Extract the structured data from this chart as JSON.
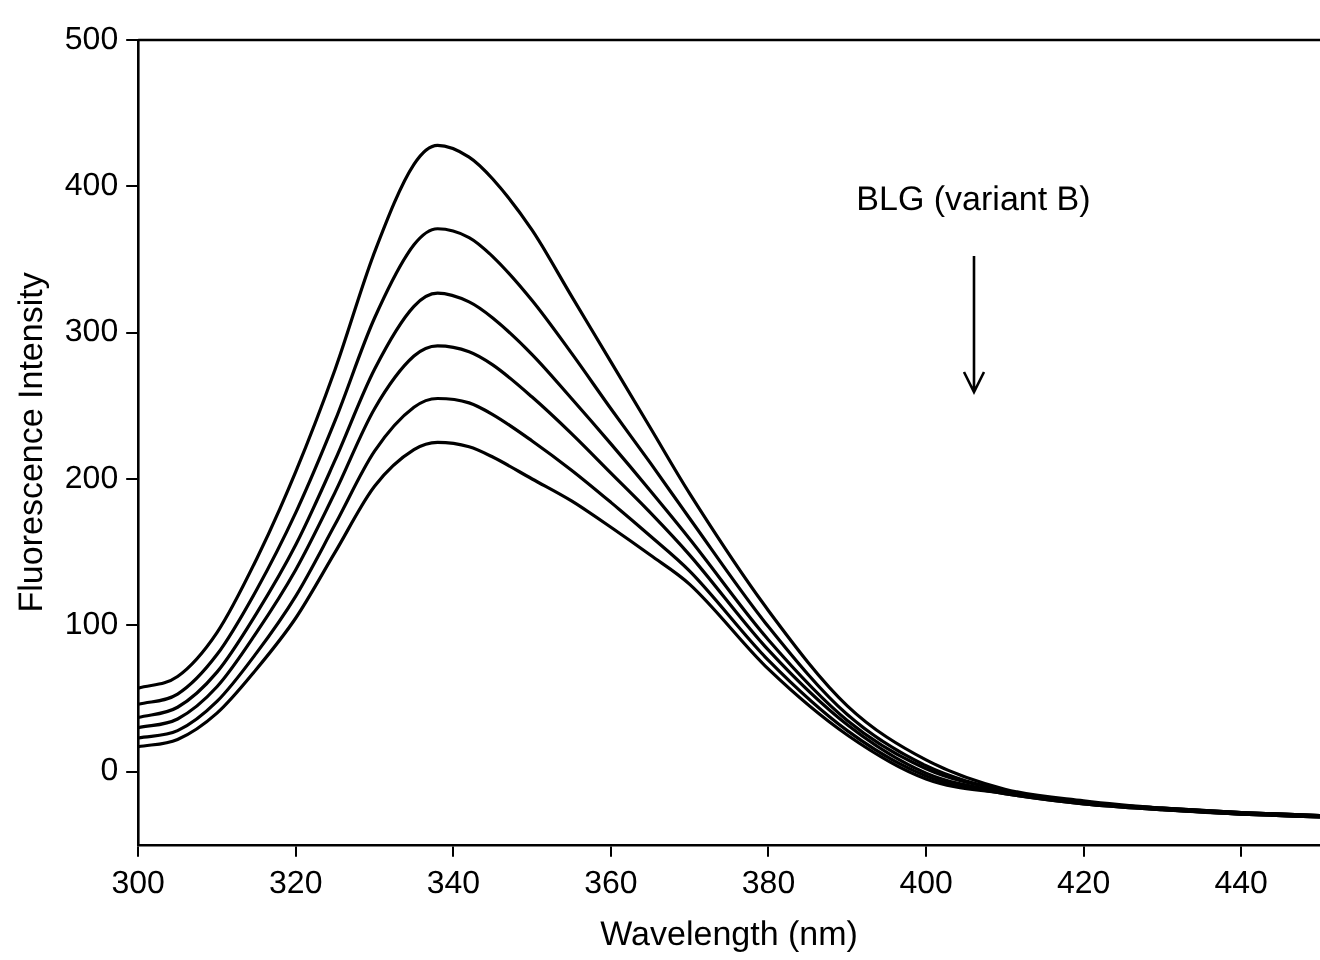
{
  "chart_data": {
    "type": "line",
    "xlabel": "Wavelength (nm)",
    "ylabel": "Fluorescence Intensity",
    "annotations": [
      "BLG (variant B)"
    ],
    "x": [
      300,
      305,
      310,
      315,
      320,
      325,
      330,
      335,
      338,
      342,
      345,
      350,
      355,
      360,
      365,
      370,
      380,
      390,
      400,
      410,
      420,
      430,
      440,
      450
    ],
    "series": [
      {
        "color": "#000000",
        "values": [
          57,
          65,
          95,
          145,
          205,
          275,
          355,
          415,
          428,
          420,
          405,
          370,
          325,
          280,
          235,
          190,
          110,
          45,
          8,
          -12,
          -20,
          -25,
          -28,
          -30
        ]
      },
      {
        "color": "#000000",
        "values": [
          46,
          53,
          80,
          124,
          177,
          240,
          310,
          360,
          371,
          365,
          352,
          322,
          286,
          248,
          211,
          173,
          99,
          39,
          4,
          -13,
          -21,
          -25,
          -28,
          -30
        ]
      },
      {
        "color": "#000000",
        "values": [
          37,
          44,
          68,
          108,
          155,
          213,
          275,
          318,
          327,
          321,
          310,
          285,
          255,
          224,
          192,
          159,
          90,
          35,
          2,
          -13,
          -21,
          -25,
          -28,
          -30
        ]
      },
      {
        "color": "#000000",
        "values": [
          30,
          36,
          58,
          95,
          138,
          191,
          248,
          284,
          291,
          287,
          278,
          256,
          231,
          204,
          177,
          148,
          83,
          32,
          -1,
          -14,
          -21,
          -26,
          -29,
          -31
        ]
      },
      {
        "color": "#000000",
        "values": [
          23,
          28,
          48,
          81,
          120,
          169,
          219,
          249,
          255,
          252,
          244,
          226,
          206,
          184,
          161,
          137,
          76,
          28,
          -3,
          -15,
          -22,
          -26,
          -29,
          -31
        ]
      },
      {
        "color": "#000000",
        "values": [
          17,
          22,
          40,
          70,
          105,
          150,
          195,
          220,
          225,
          222,
          215,
          200,
          185,
          167,
          148,
          128,
          70,
          25,
          -5,
          -15,
          -22,
          -26,
          -29,
          -31
        ]
      }
    ],
    "xlim": [
      300,
      450
    ],
    "xticks": [
      300,
      320,
      340,
      360,
      380,
      400,
      420,
      440
    ],
    "ylim": [
      -50,
      500
    ],
    "yticks": [
      0,
      100,
      200,
      300,
      400,
      500
    ],
    "grid": false,
    "legend": false,
    "marker": "none",
    "line_style": "solid"
  }
}
